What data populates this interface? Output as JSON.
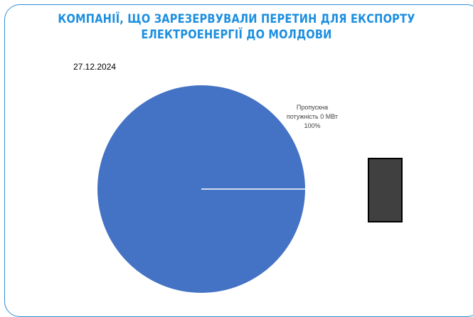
{
  "chart_data": {
    "type": "pie",
    "title_line1": "КОМПАНІЇ, ЩО ЗАРЕЗЕРВУВАЛИ ПЕРЕТИН ДЛЯ ЕКСПОРТУ",
    "title_line2": "ЕЛЕКТРОЕНЕРГІЇ ДО МОЛДОВИ",
    "subtitle": "27.12.2024",
    "slices": [
      {
        "label_line1": "Пропускна",
        "label_line2": "потужність 0 МВт",
        "percent_label": "100%",
        "value": 100,
        "color": "#4472c4"
      }
    ],
    "legend_box_color": "#404040"
  },
  "colors": {
    "title": "#1d8fe0",
    "frame": "#2f8fd6"
  }
}
